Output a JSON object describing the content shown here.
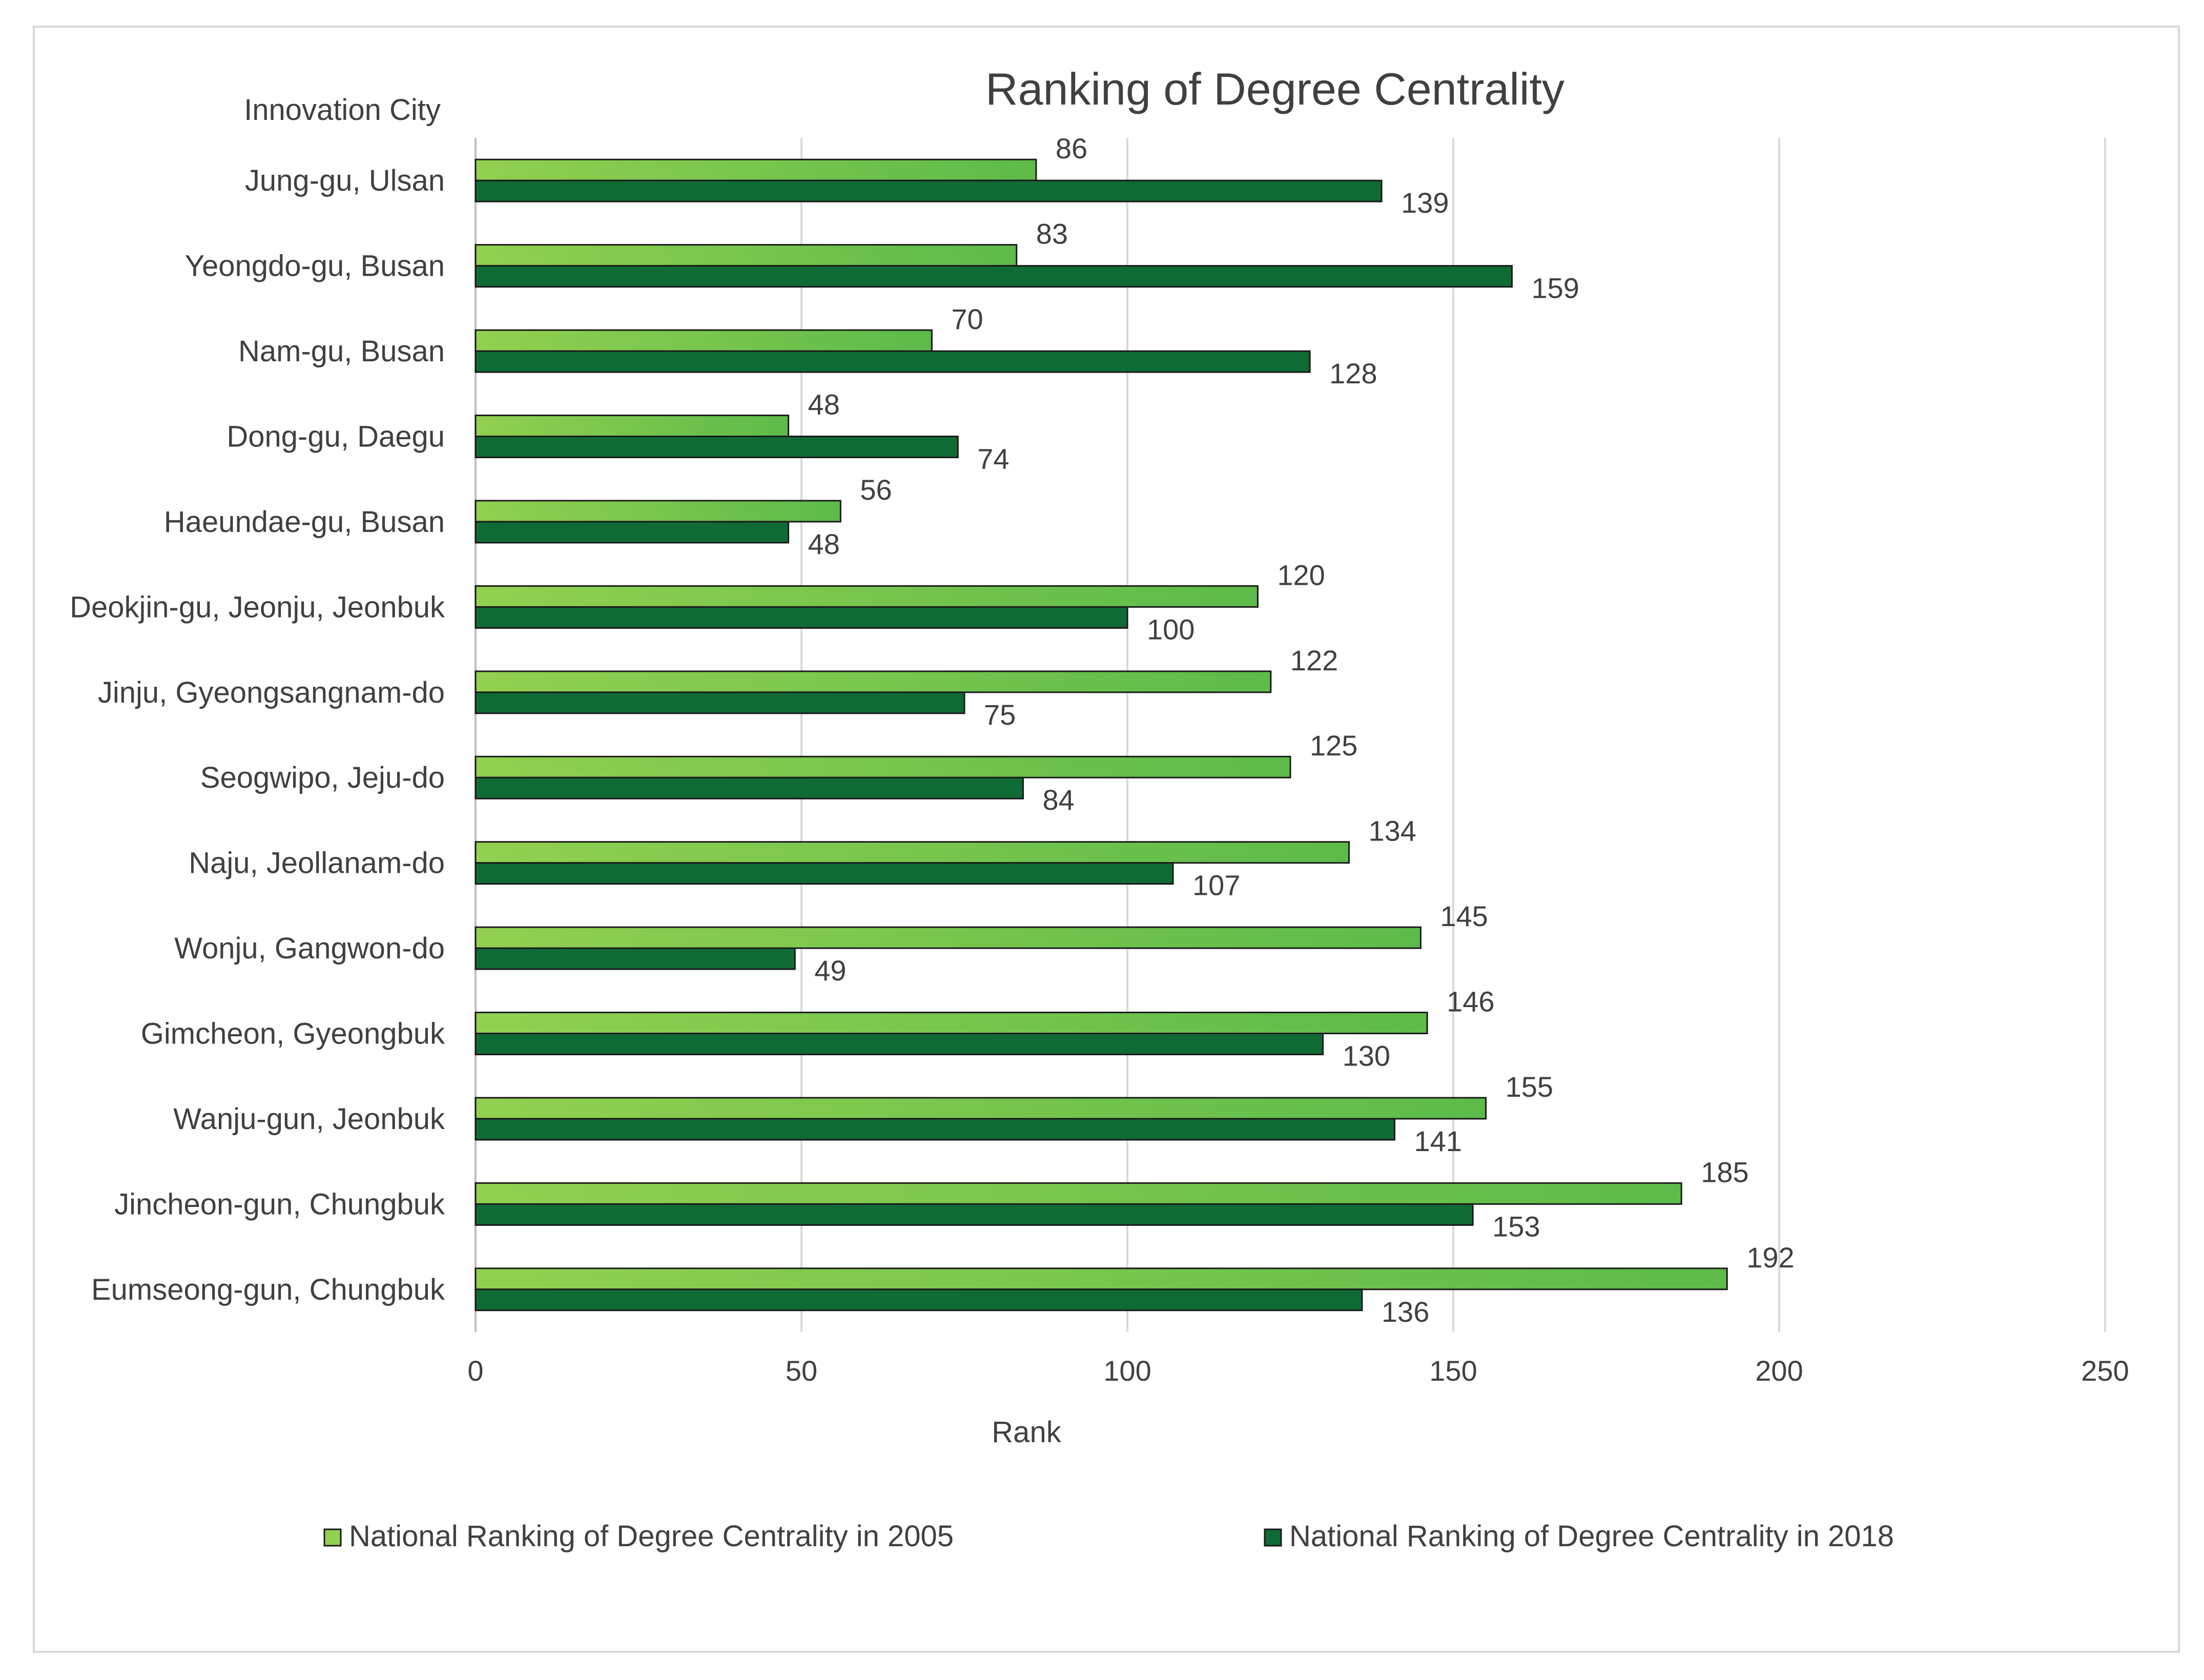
{
  "chart_data": {
    "type": "bar",
    "orientation": "horizontal",
    "title": "Ranking of Degree Centrality",
    "category_axis_title": "Innovation City",
    "xlabel": "Rank",
    "xlim": [
      0,
      250
    ],
    "x_ticks": [
      0,
      50,
      100,
      150,
      200,
      250
    ],
    "grid": true,
    "legend_position": "bottom",
    "categories": [
      "Jung-gu, Ulsan",
      "Yeongdo-gu, Busan",
      "Nam-gu, Busan",
      "Dong-gu, Daegu",
      "Haeundae-gu, Busan",
      "Deokjin-gu, Jeonju, Jeonbuk",
      "Jinju, Gyeongsangnam-do",
      "Seogwipo, Jeju-do",
      "Naju, Jeollanam-do",
      "Wonju, Gangwon-do",
      "Gimcheon, Gyeongbuk",
      "Wanju-gun, Jeonbuk",
      "Jincheon-gun, Chungbuk",
      "Eumseong-gun, Chungbuk"
    ],
    "series": [
      {
        "name": "National Ranking of Degree Centrality in 2005",
        "color": "#7cc84a",
        "values": [
          86,
          83,
          70,
          48,
          56,
          120,
          122,
          125,
          134,
          145,
          146,
          155,
          185,
          192
        ]
      },
      {
        "name": "National Ranking of Degree Centrality in 2018",
        "color": "#0f6b35",
        "values": [
          139,
          159,
          128,
          74,
          48,
          100,
          75,
          84,
          107,
          49,
          130,
          141,
          153,
          136
        ]
      }
    ]
  }
}
